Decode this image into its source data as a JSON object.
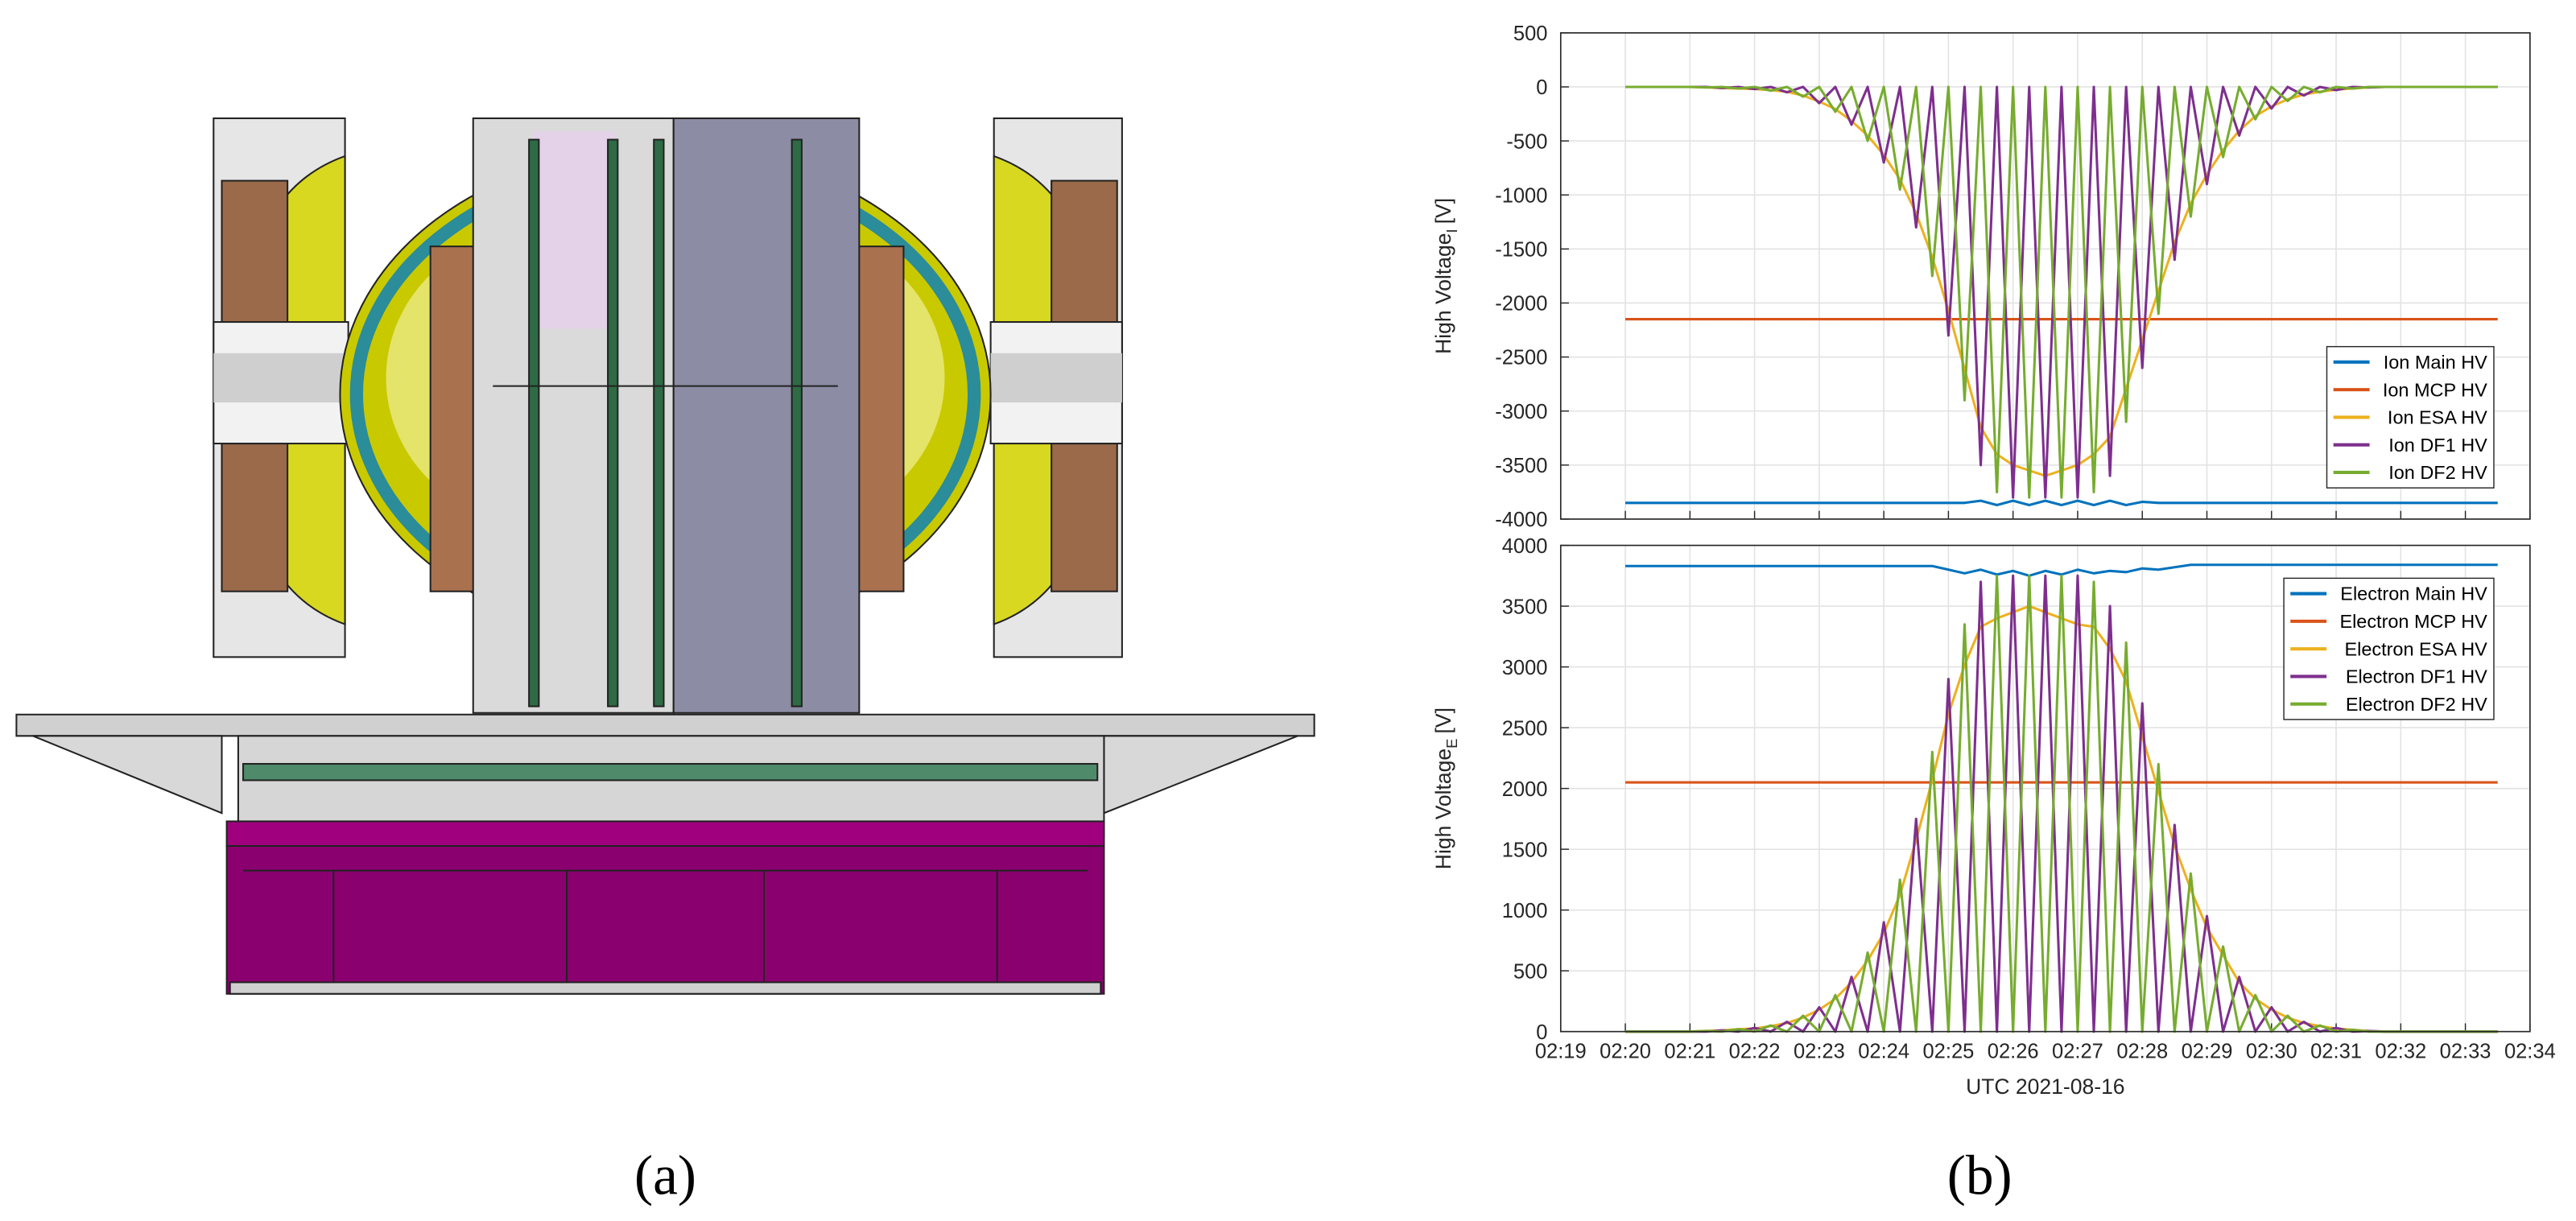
{
  "figure": {
    "panel_labels": [
      "(a)",
      "(b)"
    ]
  },
  "chart_data": [
    {
      "type": "line",
      "ylabel": "High Voltage",
      "ylabel_subscript": "I",
      "ylabel_unit": "[V]",
      "x": [
        20,
        20.25,
        20.5,
        20.75,
        21,
        21.25,
        21.5,
        21.75,
        22,
        22.25,
        22.5,
        22.75,
        23,
        23.25,
        23.5,
        23.75,
        24,
        24.25,
        24.5,
        24.75,
        25,
        25.25,
        25.5,
        25.75,
        26,
        26.25,
        26.5,
        26.75,
        27,
        27.25,
        27.5,
        27.75,
        28,
        28.25,
        28.5,
        28.75,
        29,
        29.25,
        29.5,
        29.75,
        30,
        30.25,
        30.5,
        30.75,
        31,
        31.25,
        31.5,
        31.75,
        32,
        32.25,
        32.5,
        32.75,
        33,
        33.25,
        33.5
      ],
      "xlim": [
        19,
        34
      ],
      "xticks": [
        19,
        20,
        21,
        22,
        23,
        24,
        25,
        26,
        27,
        28,
        29,
        30,
        31,
        32,
        33,
        34
      ],
      "xtick_labels": false,
      "ylim": [
        -4000,
        500
      ],
      "yticks": [
        -4000,
        -3500,
        -3000,
        -2500,
        -2000,
        -1500,
        -1000,
        -500,
        0,
        500
      ],
      "grid": true,
      "legend": "southeast",
      "series": [
        {
          "name": "Ion Main HV",
          "color": "#0072BD",
          "values": [
            -3850,
            -3850,
            -3850,
            -3850,
            -3850,
            -3850,
            -3850,
            -3850,
            -3850,
            -3850,
            -3850,
            -3850,
            -3850,
            -3850,
            -3850,
            -3850,
            -3850,
            -3850,
            -3850,
            -3850,
            -3850,
            -3850,
            -3830,
            -3870,
            -3830,
            -3870,
            -3830,
            -3870,
            -3830,
            -3870,
            -3830,
            -3870,
            -3840,
            -3850,
            -3850,
            -3850,
            -3850,
            -3850,
            -3850,
            -3850,
            -3850,
            -3850,
            -3850,
            -3850,
            -3850,
            -3850,
            -3850,
            -3850,
            -3850,
            -3850,
            -3850,
            -3850,
            -3850,
            -3850,
            -3850
          ]
        },
        {
          "name": "Ion MCP HV",
          "color": "#D95319",
          "values": [
            -2150,
            -2150,
            -2150,
            -2150,
            -2150,
            -2150,
            -2150,
            -2150,
            -2150,
            -2150,
            -2150,
            -2150,
            -2150,
            -2150,
            -2150,
            -2150,
            -2150,
            -2150,
            -2150,
            -2150,
            -2150,
            -2150,
            -2150,
            -2150,
            -2150,
            -2150,
            -2150,
            -2150,
            -2150,
            -2150,
            -2150,
            -2150,
            -2150,
            -2150,
            -2150,
            -2150,
            -2150,
            -2150,
            -2150,
            -2150,
            -2150,
            -2150,
            -2150,
            -2150,
            -2150,
            -2150,
            -2150,
            -2150,
            -2150,
            -2150,
            -2150,
            -2150,
            -2150,
            -2150,
            -2150
          ]
        },
        {
          "name": "Ion ESA HV",
          "color": "#EDB120",
          "values": [
            0,
            0,
            0,
            0,
            0,
            -5,
            -10,
            -15,
            -20,
            -30,
            -45,
            -80,
            -135,
            -205,
            -315,
            -450,
            -630,
            -855,
            -1170,
            -1575,
            -2070,
            -2610,
            -3150,
            -3400,
            -3500,
            -3550,
            -3600,
            -3550,
            -3500,
            -3400,
            -3240,
            -2790,
            -2340,
            -1890,
            -1440,
            -1080,
            -810,
            -585,
            -405,
            -270,
            -180,
            -115,
            -70,
            -45,
            -25,
            -15,
            -5,
            0,
            0,
            0,
            0,
            0,
            0,
            0,
            0
          ]
        },
        {
          "name": "Ion DF1 HV",
          "color": "#7E2F8E",
          "values": [
            0,
            0,
            0,
            0,
            0,
            0,
            -10,
            0,
            -20,
            0,
            -50,
            0,
            -150,
            0,
            -350,
            0,
            -700,
            0,
            -1300,
            0,
            -2300,
            0,
            -3500,
            0,
            -3800,
            0,
            -3800,
            0,
            -3800,
            0,
            -3600,
            0,
            -2600,
            0,
            -1600,
            0,
            -900,
            0,
            -450,
            0,
            -200,
            0,
            -80,
            0,
            -30,
            0,
            -5,
            0,
            0,
            0,
            0,
            0,
            0,
            0,
            0
          ]
        },
        {
          "name": "Ion DF2 HV",
          "color": "#77AC30",
          "values": [
            0,
            0,
            0,
            0,
            0,
            -5,
            0,
            -15,
            0,
            -35,
            0,
            -90,
            0,
            -230,
            0,
            -500,
            0,
            -950,
            0,
            -1750,
            0,
            -2900,
            0,
            -3750,
            0,
            -3800,
            0,
            -3800,
            0,
            -3750,
            0,
            -3100,
            0,
            -2100,
            0,
            -1200,
            0,
            -650,
            0,
            -300,
            0,
            -130,
            0,
            -50,
            0,
            -15,
            0,
            0,
            0,
            0,
            0,
            0,
            0,
            0,
            0
          ]
        }
      ]
    },
    {
      "type": "line",
      "ylabel": "High Voltage",
      "ylabel_subscript": "E",
      "ylabel_unit": "[V]",
      "xlabel": "UTC 2021-08-16",
      "x": [
        20,
        20.25,
        20.5,
        20.75,
        21,
        21.25,
        21.5,
        21.75,
        22,
        22.25,
        22.5,
        22.75,
        23,
        23.25,
        23.5,
        23.75,
        24,
        24.25,
        24.5,
        24.75,
        25,
        25.25,
        25.5,
        25.75,
        26,
        26.25,
        26.5,
        26.75,
        27,
        27.25,
        27.5,
        27.75,
        28,
        28.25,
        28.5,
        28.75,
        29,
        29.25,
        29.5,
        29.75,
        30,
        30.25,
        30.5,
        30.75,
        31,
        31.25,
        31.5,
        31.75,
        32,
        32.25,
        32.5,
        32.75,
        33,
        33.25,
        33.5
      ],
      "xlim": [
        19,
        34
      ],
      "xticks": [
        {
          "value": 19,
          "label": "02:19"
        },
        {
          "value": 20,
          "label": "02:20"
        },
        {
          "value": 21,
          "label": "02:21"
        },
        {
          "value": 22,
          "label": "02:22"
        },
        {
          "value": 23,
          "label": "02:23"
        },
        {
          "value": 24,
          "label": "02:24"
        },
        {
          "value": 25,
          "label": "02:25"
        },
        {
          "value": 26,
          "label": "02:26"
        },
        {
          "value": 27,
          "label": "02:27"
        },
        {
          "value": 28,
          "label": "02:28"
        },
        {
          "value": 29,
          "label": "02:29"
        },
        {
          "value": 30,
          "label": "02:30"
        },
        {
          "value": 31,
          "label": "02:31"
        },
        {
          "value": 32,
          "label": "02:32"
        },
        {
          "value": 33,
          "label": "02:33"
        },
        {
          "value": 34,
          "label": "02:34"
        }
      ],
      "ylim": [
        0,
        4000
      ],
      "yticks": [
        0,
        500,
        1000,
        1500,
        2000,
        2500,
        3000,
        3500,
        4000
      ],
      "grid": true,
      "legend": "northeast",
      "series": [
        {
          "name": "Electron Main HV",
          "color": "#0072BD",
          "values": [
            3830,
            3830,
            3830,
            3830,
            3830,
            3830,
            3830,
            3830,
            3830,
            3830,
            3830,
            3830,
            3830,
            3830,
            3830,
            3830,
            3830,
            3830,
            3830,
            3830,
            3800,
            3770,
            3800,
            3760,
            3790,
            3750,
            3790,
            3760,
            3800,
            3770,
            3790,
            3780,
            3810,
            3800,
            3820,
            3840,
            3840,
            3840,
            3840,
            3840,
            3840,
            3840,
            3840,
            3840,
            3840,
            3840,
            3840,
            3840,
            3840,
            3840,
            3840,
            3840,
            3840,
            3840,
            3840
          ]
        },
        {
          "name": "Electron MCP HV",
          "color": "#D95319",
          "values": [
            2050,
            2050,
            2050,
            2050,
            2050,
            2050,
            2050,
            2050,
            2050,
            2050,
            2050,
            2050,
            2050,
            2050,
            2050,
            2050,
            2050,
            2050,
            2050,
            2050,
            2050,
            2050,
            2050,
            2050,
            2050,
            2050,
            2050,
            2050,
            2050,
            2050,
            2050,
            2050,
            2050,
            2050,
            2050,
            2050,
            2050,
            2050,
            2050,
            2050,
            2050,
            2050,
            2050,
            2050,
            2050,
            2050,
            2050,
            2050,
            2050,
            2050,
            2050,
            2050,
            2050,
            2050,
            2050
          ]
        },
        {
          "name": "Electron ESA HV",
          "color": "#EDB120",
          "values": [
            0,
            0,
            0,
            0,
            0,
            5,
            10,
            20,
            25,
            45,
            70,
            115,
            180,
            270,
            405,
            585,
            810,
            1125,
            1575,
            2070,
            2610,
            3015,
            3330,
            3400,
            3450,
            3500,
            3450,
            3400,
            3350,
            3330,
            3150,
            2880,
            2430,
            1980,
            1530,
            1170,
            855,
            630,
            405,
            270,
            180,
            115,
            70,
            45,
            25,
            15,
            5,
            0,
            0,
            0,
            0,
            0,
            0,
            0,
            0
          ]
        },
        {
          "name": "Electron DF1 HV",
          "color": "#7E2F8E",
          "values": [
            0,
            0,
            0,
            0,
            0,
            0,
            10,
            0,
            30,
            0,
            80,
            0,
            200,
            0,
            450,
            0,
            900,
            0,
            1750,
            0,
            2900,
            0,
            3700,
            0,
            3750,
            0,
            3750,
            0,
            3750,
            0,
            3500,
            0,
            2700,
            0,
            1700,
            0,
            950,
            0,
            450,
            0,
            200,
            0,
            80,
            0,
            30,
            0,
            5,
            0,
            0,
            0,
            0,
            0,
            0,
            0,
            0
          ]
        },
        {
          "name": "Electron DF2 HV",
          "color": "#77AC30",
          "values": [
            0,
            0,
            0,
            0,
            0,
            5,
            0,
            20,
            0,
            50,
            0,
            130,
            0,
            300,
            0,
            650,
            0,
            1250,
            0,
            2300,
            0,
            3350,
            0,
            3750,
            0,
            3750,
            0,
            3750,
            0,
            3700,
            0,
            3200,
            0,
            2200,
            0,
            1300,
            0,
            700,
            0,
            300,
            0,
            130,
            0,
            50,
            0,
            15,
            0,
            0,
            0,
            0,
            0,
            0,
            0,
            0,
            0
          ]
        }
      ]
    }
  ]
}
